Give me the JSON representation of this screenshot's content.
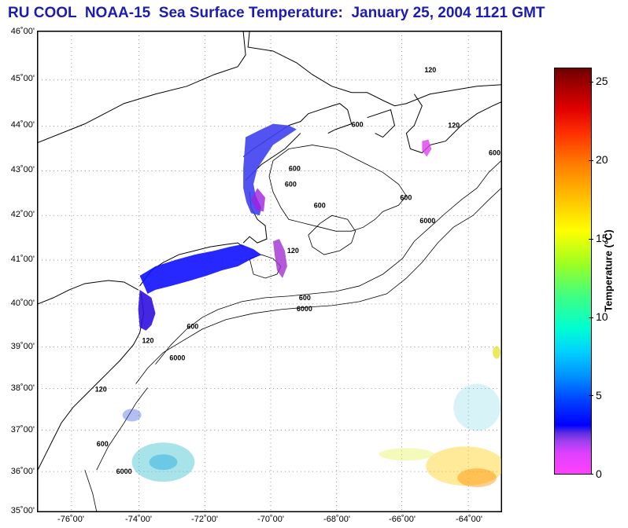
{
  "title": {
    "part1": "RU COOL",
    "part2": "NOAA-15",
    "part3": "Sea Surface Temperature:",
    "part4": "January 25, 2004 1121 GMT"
  },
  "axes": {
    "lat_labels": [
      "46˚00'",
      "45˚00'",
      "44˚00'",
      "43˚00'",
      "42˚00'",
      "41˚00'",
      "40˚00'",
      "39˚00'",
      "38˚00'",
      "37˚00'",
      "36˚00'",
      "35˚00'"
    ],
    "lon_labels": [
      "-76˚00'",
      "-74˚00'",
      "-72˚00'",
      "-70˚00'",
      "-68˚00'",
      "-66˚00'",
      "-64˚00'"
    ]
  },
  "isobaths": [
    "120",
    "600",
    "6000"
  ],
  "colorbar": {
    "label": "Temperature (°C)",
    "ticks": [
      "0",
      "5",
      "10",
      "15",
      "20",
      "25"
    ],
    "min": 0,
    "max": 26
  }
}
